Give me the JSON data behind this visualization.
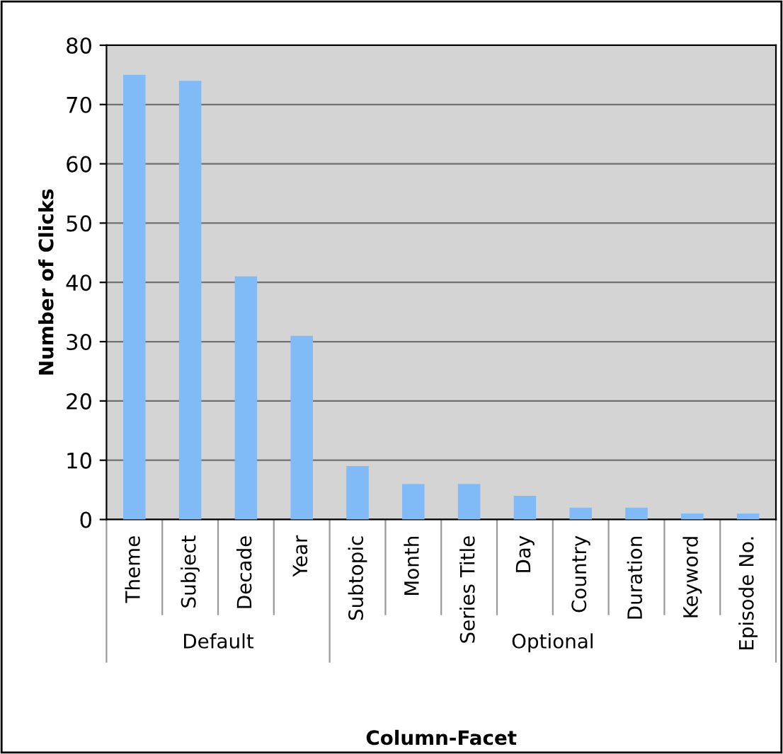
{
  "chart_data": {
    "type": "bar",
    "xlabel": "Column-Facet",
    "ylabel": "Number of Clicks",
    "categories": [
      "Theme",
      "Subject",
      "Decade",
      "Year",
      "Subtopic",
      "Month",
      "Series Title",
      "Day",
      "Country",
      "Duration",
      "Keyword",
      "Episode No."
    ],
    "values": [
      75,
      74,
      41,
      31,
      9,
      6,
      6,
      4,
      2,
      2,
      1,
      1
    ],
    "color": "#80bbf7",
    "ylim": [
      0,
      80
    ],
    "yticks": [
      0,
      10,
      20,
      30,
      40,
      50,
      60,
      70,
      80
    ],
    "grid": "y",
    "annotations": [
      "Default",
      "Optional"
    ]
  }
}
